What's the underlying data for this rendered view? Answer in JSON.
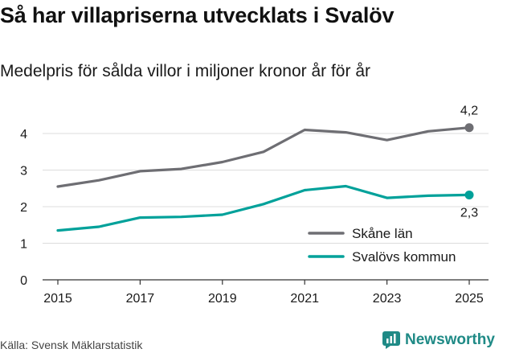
{
  "header": {
    "title": "Så har villapriserna utvecklats i Svalöv",
    "subtitle": "Medelpris för sålda villor i miljoner kronor år för år"
  },
  "footer": {
    "source": "Källa: Svensk Mäklarstatistik",
    "brand": "Newsworthy"
  },
  "colors": {
    "skane": "#6e6e73",
    "svalov": "#00a19a",
    "grid": "#dcdcdc",
    "axis": "#333333",
    "brand": "#1f8a86"
  },
  "chart_data": {
    "type": "line",
    "title": "Så har villapriserna utvecklats i Svalöv",
    "subtitle": "Medelpris för sålda villor i miljoner kronor år för år",
    "xlabel": "",
    "ylabel": "",
    "x": [
      2015,
      2016,
      2017,
      2018,
      2019,
      2020,
      2021,
      2022,
      2023,
      2024,
      2025
    ],
    "xlim": [
      2015,
      2025
    ],
    "ylim": [
      0,
      4.5
    ],
    "x_ticks": [
      "2015",
      "2017",
      "2019",
      "2021",
      "2023",
      "2025"
    ],
    "y_ticks": [
      "0",
      "1",
      "2",
      "3",
      "4"
    ],
    "grid": true,
    "legend_position": "bottom-right",
    "series": [
      {
        "name": "Skåne län",
        "color": "#6e6e73",
        "values": [
          2.55,
          2.72,
          2.97,
          3.03,
          3.22,
          3.5,
          4.1,
          4.03,
          3.82,
          4.06,
          4.16
        ],
        "end_label": "4,2",
        "end_label_position": "above"
      },
      {
        "name": "Svalövs kommun",
        "color": "#00a19a",
        "values": [
          1.35,
          1.45,
          1.7,
          1.72,
          1.78,
          2.07,
          2.45,
          2.56,
          2.24,
          2.3,
          2.32
        ],
        "end_label": "2,3",
        "end_label_position": "below"
      }
    ]
  }
}
